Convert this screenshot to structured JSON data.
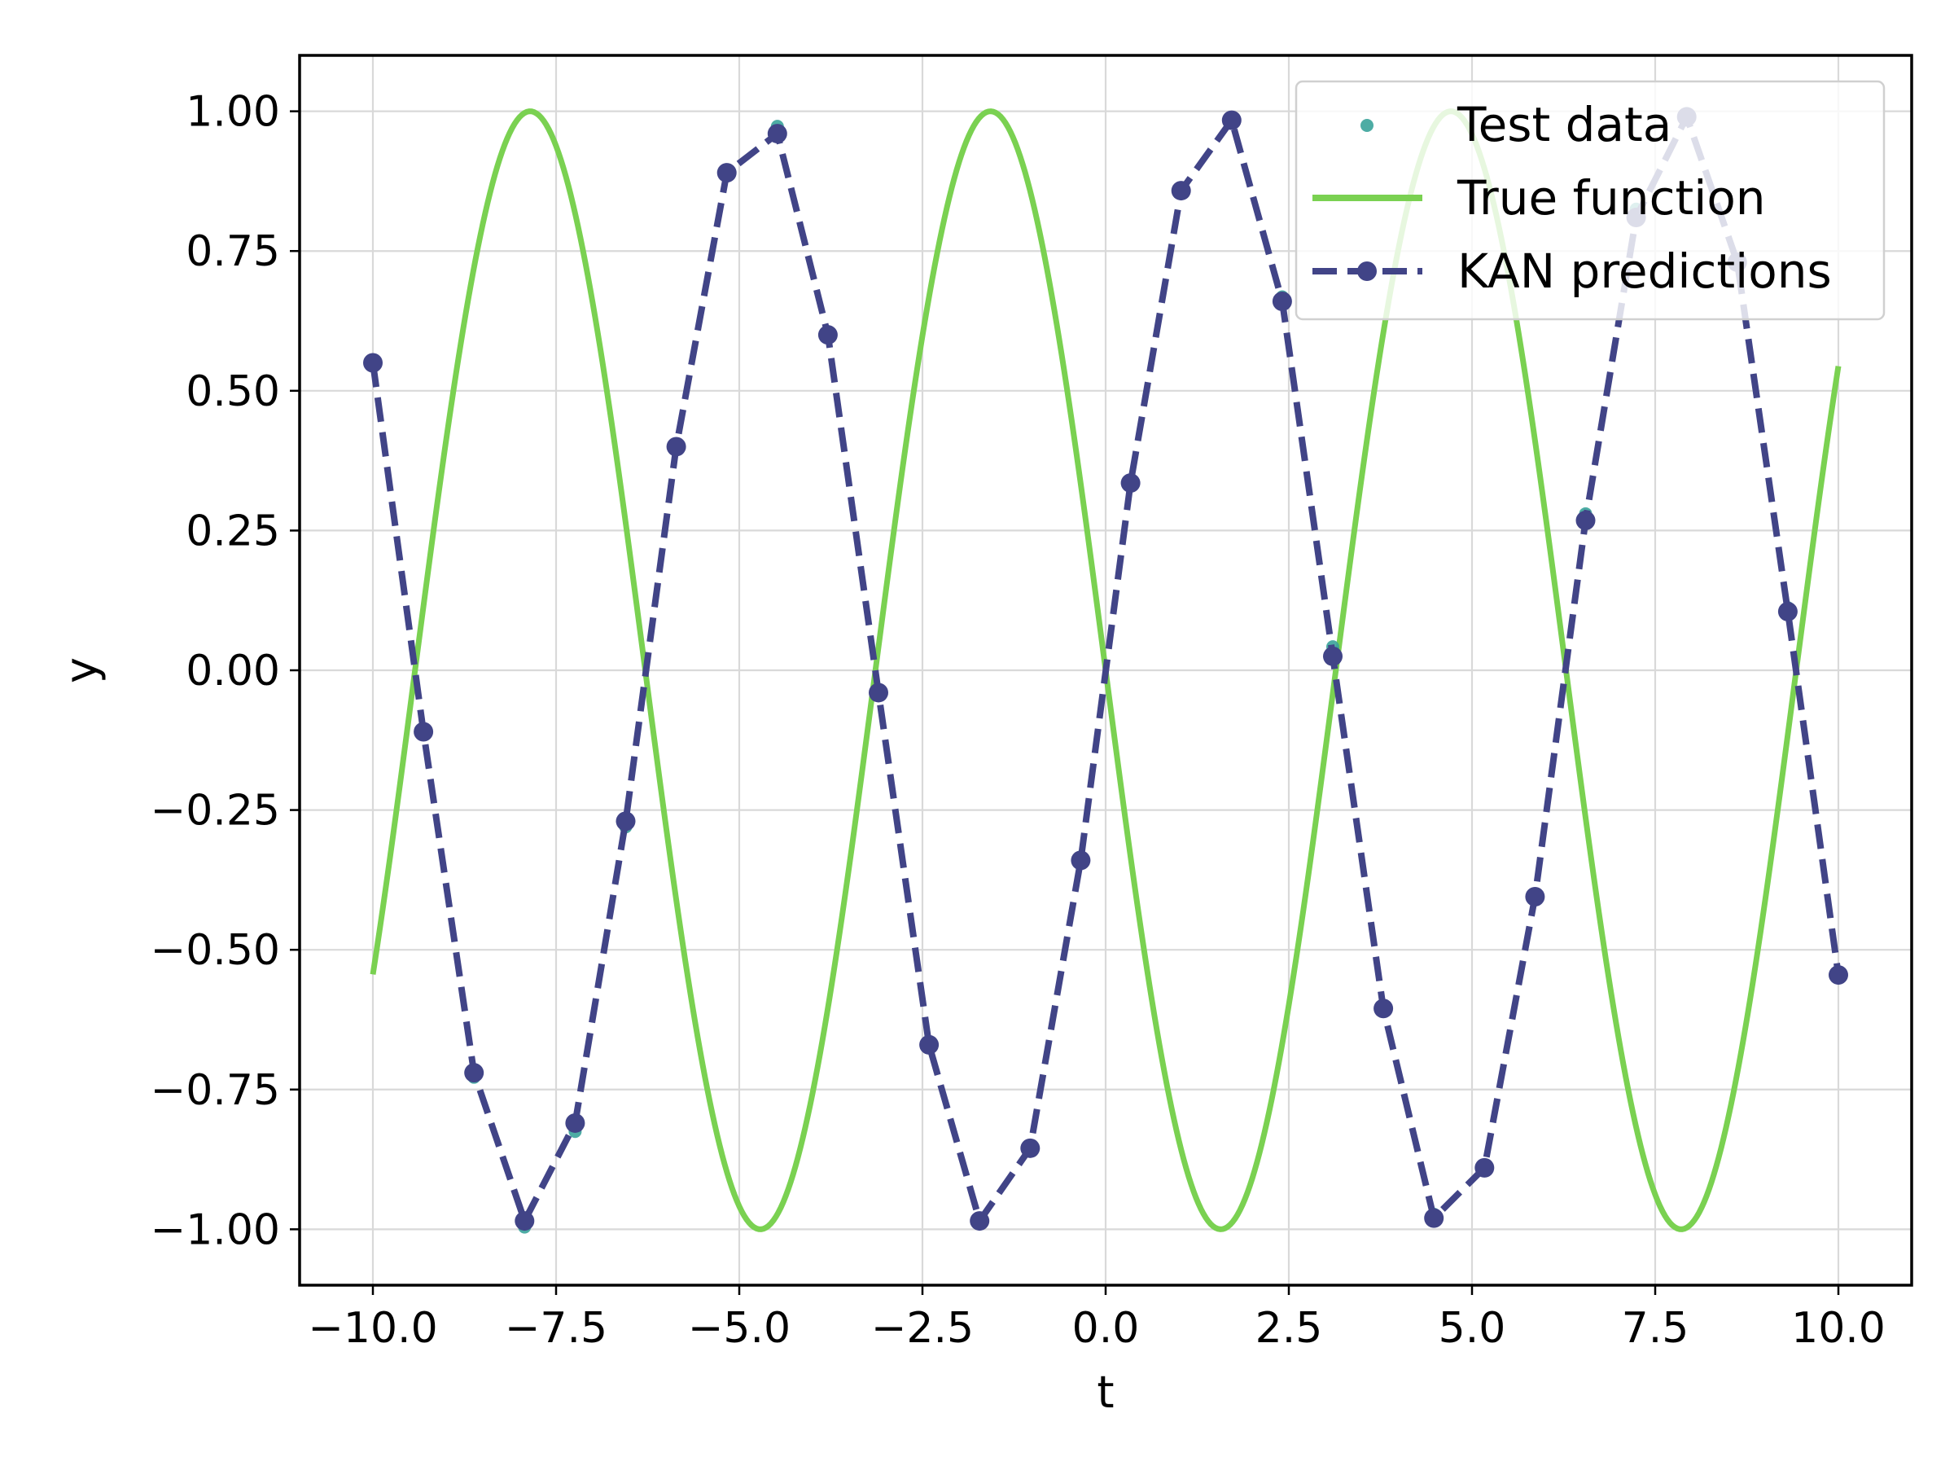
{
  "chart_data": {
    "type": "line",
    "title": "",
    "xlabel": "t",
    "ylabel": "y",
    "xlim": [
      -11.0,
      11.0
    ],
    "ylim": [
      -1.1,
      1.1
    ],
    "x_ticks": [
      -10.0,
      -7.5,
      -5.0,
      -2.5,
      0.0,
      2.5,
      5.0,
      7.5,
      10.0
    ],
    "x_tick_labels": [
      "−10.0",
      "−7.5",
      "−5.0",
      "−2.5",
      "0.0",
      "2.5",
      "5.0",
      "7.5",
      "10.0"
    ],
    "y_ticks": [
      -1.0,
      -0.75,
      -0.5,
      -0.25,
      0.0,
      0.25,
      0.5,
      0.75,
      1.0
    ],
    "y_tick_labels": [
      "−1.00",
      "−0.75",
      "−0.50",
      "−0.25",
      "0.00",
      "0.25",
      "0.50",
      "0.75",
      "1.00"
    ],
    "grid": true,
    "legend_position": "top-right",
    "series": [
      {
        "name": "Test data",
        "kind": "scatter",
        "color": "#3aa39a",
        "x": [
          -10.0,
          -9.31,
          -8.62,
          -7.93,
          -7.24,
          -6.55,
          -5.86,
          -5.17,
          -4.48,
          -3.79,
          -3.1,
          -2.41,
          -1.72,
          -1.03,
          -0.34,
          0.34,
          1.03,
          1.72,
          2.41,
          3.1,
          3.79,
          4.48,
          5.17,
          5.86,
          6.55,
          7.24,
          7.93,
          8.62,
          9.31,
          10.0
        ],
        "y": [
          0.544,
          -0.112,
          -0.728,
          -0.996,
          -0.825,
          -0.28,
          0.4,
          0.894,
          0.973,
          0.6,
          -0.042,
          -0.668,
          -0.989,
          -0.857,
          -0.334,
          0.334,
          0.857,
          0.989,
          0.668,
          0.042,
          -0.6,
          -0.973,
          -0.894,
          -0.4,
          0.28,
          0.825,
          0.996,
          0.728,
          0.112,
          -0.544
        ]
      },
      {
        "name": "True function",
        "kind": "line",
        "color": "#7ad151",
        "function": "sin(-t)",
        "x_range": [
          -10.0,
          10.0
        ]
      },
      {
        "name": "KAN predictions",
        "kind": "line-markers-dashed",
        "color": "#414487",
        "x": [
          -10.0,
          -9.31,
          -8.62,
          -7.93,
          -7.24,
          -6.55,
          -5.86,
          -5.17,
          -4.48,
          -3.79,
          -3.1,
          -2.41,
          -1.72,
          -1.03,
          -0.34,
          0.34,
          1.03,
          1.72,
          2.41,
          3.1,
          3.79,
          4.48,
          5.17,
          5.86,
          6.55,
          7.24,
          7.93,
          8.62,
          9.31,
          10.0
        ],
        "y": [
          0.55,
          -0.11,
          -0.72,
          -0.985,
          -0.81,
          -0.27,
          0.4,
          0.89,
          0.96,
          0.6,
          -0.04,
          -0.67,
          -0.985,
          -0.855,
          -0.34,
          0.335,
          0.858,
          0.984,
          0.66,
          0.025,
          -0.605,
          -0.98,
          -0.89,
          -0.405,
          0.268,
          0.81,
          0.99,
          0.73,
          0.105,
          -0.545
        ]
      }
    ]
  }
}
